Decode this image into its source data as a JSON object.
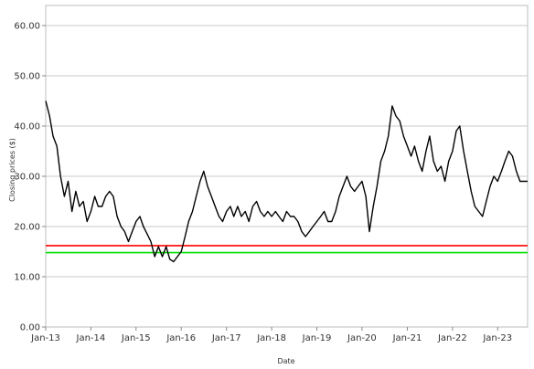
{
  "chart_data": {
    "type": "line",
    "xlabel": "Date",
    "ylabel": "Closing prices ($)",
    "grid": true,
    "x_range": [
      "2013-01-01",
      "2023-08-31"
    ],
    "ylim": [
      0,
      64
    ],
    "y_ticks": [
      0,
      10,
      20,
      30,
      40,
      50,
      60
    ],
    "y_tick_labels": [
      "0.00",
      "10.00",
      "20.00",
      "30.00",
      "40.00",
      "50.00",
      "60.00"
    ],
    "x_ticks": [
      "2013-01-01",
      "2014-01-01",
      "2015-01-01",
      "2016-01-01",
      "2017-01-01",
      "2018-01-01",
      "2019-01-01",
      "2020-01-01",
      "2021-01-01",
      "2022-01-01",
      "2023-01-01"
    ],
    "x_tick_labels": [
      "Jan-13",
      "Jan-14",
      "Jan-15",
      "Jan-16",
      "Jan-17",
      "Jan-18",
      "Jan-19",
      "Jan-20",
      "Jan-21",
      "Jan-22",
      "Jan-23"
    ],
    "series": [
      {
        "color": "#000000",
        "points": [
          [
            "2013-01-01",
            45
          ],
          [
            "2013-02-01",
            42
          ],
          [
            "2013-03-01",
            38
          ],
          [
            "2013-04-01",
            36
          ],
          [
            "2013-05-01",
            30
          ],
          [
            "2013-06-01",
            26
          ],
          [
            "2013-07-01",
            29
          ],
          [
            "2013-08-01",
            23
          ],
          [
            "2013-09-01",
            27
          ],
          [
            "2013-10-01",
            24
          ],
          [
            "2013-11-01",
            25
          ],
          [
            "2013-12-01",
            21
          ],
          [
            "2014-01-01",
            23
          ],
          [
            "2014-02-01",
            26
          ],
          [
            "2014-03-01",
            24
          ],
          [
            "2014-04-01",
            24
          ],
          [
            "2014-05-01",
            26
          ],
          [
            "2014-06-01",
            27
          ],
          [
            "2014-07-01",
            26
          ],
          [
            "2014-08-01",
            22
          ],
          [
            "2014-09-01",
            20
          ],
          [
            "2014-10-01",
            19
          ],
          [
            "2014-11-01",
            17
          ],
          [
            "2014-12-01",
            19
          ],
          [
            "2015-01-01",
            21
          ],
          [
            "2015-02-01",
            22
          ],
          [
            "2015-03-01",
            20
          ],
          [
            "2015-04-01",
            18.5
          ],
          [
            "2015-05-01",
            17
          ],
          [
            "2015-06-01",
            14
          ],
          [
            "2015-07-01",
            16
          ],
          [
            "2015-08-01",
            14
          ],
          [
            "2015-09-01",
            16
          ],
          [
            "2015-10-01",
            13.5
          ],
          [
            "2015-11-01",
            13
          ],
          [
            "2015-12-01",
            14
          ],
          [
            "2016-01-01",
            15
          ],
          [
            "2016-02-01",
            18
          ],
          [
            "2016-03-01",
            21
          ],
          [
            "2016-04-01",
            23
          ],
          [
            "2016-05-01",
            26
          ],
          [
            "2016-06-01",
            29
          ],
          [
            "2016-07-01",
            31
          ],
          [
            "2016-08-01",
            28
          ],
          [
            "2016-09-01",
            26
          ],
          [
            "2016-10-01",
            24
          ],
          [
            "2016-11-01",
            22
          ],
          [
            "2016-12-01",
            21
          ],
          [
            "2017-01-01",
            23
          ],
          [
            "2017-02-01",
            24
          ],
          [
            "2017-03-01",
            22
          ],
          [
            "2017-04-01",
            24
          ],
          [
            "2017-05-01",
            22
          ],
          [
            "2017-06-01",
            23
          ],
          [
            "2017-07-01",
            21
          ],
          [
            "2017-08-01",
            24
          ],
          [
            "2017-09-01",
            25
          ],
          [
            "2017-10-01",
            23
          ],
          [
            "2017-11-01",
            22
          ],
          [
            "2017-12-01",
            23
          ],
          [
            "2018-01-01",
            22
          ],
          [
            "2018-02-01",
            23
          ],
          [
            "2018-03-01",
            22
          ],
          [
            "2018-04-01",
            21
          ],
          [
            "2018-05-01",
            23
          ],
          [
            "2018-06-01",
            22
          ],
          [
            "2018-07-01",
            22
          ],
          [
            "2018-08-01",
            21
          ],
          [
            "2018-09-01",
            19
          ],
          [
            "2018-10-01",
            18
          ],
          [
            "2018-11-01",
            19
          ],
          [
            "2018-12-01",
            20
          ],
          [
            "2019-01-01",
            21
          ],
          [
            "2019-02-01",
            22
          ],
          [
            "2019-03-01",
            23
          ],
          [
            "2019-04-01",
            21
          ],
          [
            "2019-05-01",
            21
          ],
          [
            "2019-06-01",
            23
          ],
          [
            "2019-07-01",
            26
          ],
          [
            "2019-08-01",
            28
          ],
          [
            "2019-09-01",
            30
          ],
          [
            "2019-10-01",
            28
          ],
          [
            "2019-11-01",
            27
          ],
          [
            "2019-12-01",
            28
          ],
          [
            "2020-01-01",
            29
          ],
          [
            "2020-02-01",
            26
          ],
          [
            "2020-03-01",
            19
          ],
          [
            "2020-04-01",
            24
          ],
          [
            "2020-05-01",
            28
          ],
          [
            "2020-06-01",
            33
          ],
          [
            "2020-07-01",
            35
          ],
          [
            "2020-08-01",
            38
          ],
          [
            "2020-09-01",
            44
          ],
          [
            "2020-10-01",
            42
          ],
          [
            "2020-11-01",
            41
          ],
          [
            "2020-12-01",
            38
          ],
          [
            "2021-01-01",
            36
          ],
          [
            "2021-02-01",
            34
          ],
          [
            "2021-03-01",
            36
          ],
          [
            "2021-04-01",
            33
          ],
          [
            "2021-05-01",
            31
          ],
          [
            "2021-06-01",
            35
          ],
          [
            "2021-07-01",
            38
          ],
          [
            "2021-08-01",
            33
          ],
          [
            "2021-09-01",
            31
          ],
          [
            "2021-10-01",
            32
          ],
          [
            "2021-11-01",
            29
          ],
          [
            "2021-12-01",
            33
          ],
          [
            "2022-01-01",
            35
          ],
          [
            "2022-02-01",
            39
          ],
          [
            "2022-03-01",
            40
          ],
          [
            "2022-04-01",
            35
          ],
          [
            "2022-05-01",
            31
          ],
          [
            "2022-06-01",
            27
          ],
          [
            "2022-07-01",
            24
          ],
          [
            "2022-08-01",
            23
          ],
          [
            "2022-09-01",
            22
          ],
          [
            "2022-10-01",
            25
          ],
          [
            "2022-11-01",
            28
          ],
          [
            "2022-12-01",
            30
          ],
          [
            "2023-01-01",
            29
          ],
          [
            "2023-02-01",
            31
          ],
          [
            "2023-03-01",
            33
          ],
          [
            "2023-04-01",
            35
          ],
          [
            "2023-05-01",
            34
          ],
          [
            "2023-06-01",
            31
          ],
          [
            "2023-07-01",
            29
          ],
          [
            "2023-08-31",
            29
          ]
        ]
      }
    ],
    "reference_lines": [
      {
        "name": "red-reference-line",
        "value": 16.2,
        "color": "#ff0000"
      },
      {
        "name": "green-reference-line",
        "value": 14.8,
        "color": "#00e000"
      }
    ]
  }
}
